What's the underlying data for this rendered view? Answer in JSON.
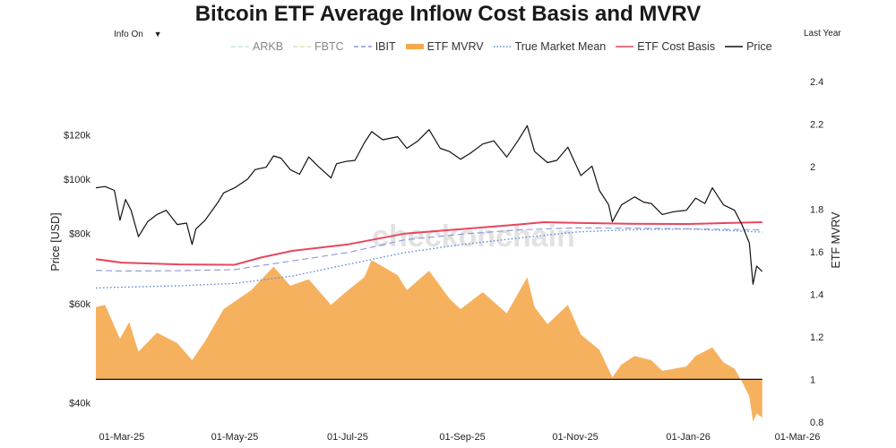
{
  "title": "Bitcoin ETF Average Inflow Cost Basis and MVRV",
  "controls": {
    "info_toggle": "Info On",
    "info_arrow": "▼",
    "range": "Last Year"
  },
  "watermark": "checkonchain",
  "legend": [
    {
      "key": "arkb",
      "label": "ARKB",
      "color": "#bfe3e3",
      "style": "dash",
      "muted": true
    },
    {
      "key": "fbtc",
      "label": "FBTC",
      "color": "#d2e8b5",
      "style": "dash",
      "muted": true
    },
    {
      "key": "ibit",
      "label": "IBIT",
      "color": "#8b95d8",
      "style": "dash",
      "muted": false
    },
    {
      "key": "etf_mvrv",
      "label": "ETF MVRV",
      "color": "#f5a94e",
      "style": "fill",
      "muted": false
    },
    {
      "key": "tmm",
      "label": "True Market Mean",
      "color": "#5a86e6",
      "style": "dot",
      "muted": false
    },
    {
      "key": "cost_basis",
      "label": "ETF Cost Basis",
      "color": "#e94560",
      "style": "solid",
      "muted": false
    },
    {
      "key": "price",
      "label": "Price",
      "color": "#111111",
      "style": "solid",
      "muted": false
    }
  ],
  "chart_data": {
    "type": "line",
    "x_range": [
      "2025-02-15",
      "2026-03-01"
    ],
    "x_ticks": [
      {
        "date": "2025-03-01",
        "label": "01-Mar-25"
      },
      {
        "date": "2025-05-01",
        "label": "01-May-25"
      },
      {
        "date": "2025-07-01",
        "label": "01-Jul-25"
      },
      {
        "date": "2025-09-01",
        "label": "01-Sep-25"
      },
      {
        "date": "2025-11-01",
        "label": "01-Nov-25"
      },
      {
        "date": "2026-01-01",
        "label": "01-Jan-26"
      },
      {
        "date": "2026-03-01",
        "label": "01-Mar-26"
      }
    ],
    "y_left": {
      "label": "Price [USD]",
      "scale": "log",
      "range": [
        36000,
        160000
      ],
      "ticks": [
        {
          "value": 40000,
          "label": "$40k"
        },
        {
          "value": 60000,
          "label": "$60k"
        },
        {
          "value": 80000,
          "label": "$80k"
        },
        {
          "value": 100000,
          "label": "$100k"
        },
        {
          "value": 120000,
          "label": "$120k"
        }
      ]
    },
    "y_right": {
      "label": "ETF MVRV",
      "range": [
        0.77,
        2.48
      ],
      "ticks": [
        {
          "value": 0.8,
          "label": "0.8"
        },
        {
          "value": 1,
          "label": "1"
        },
        {
          "value": 1.2,
          "label": "1.2"
        },
        {
          "value": 1.4,
          "label": "1.4"
        },
        {
          "value": 1.6,
          "label": "1.6"
        },
        {
          "value": 1.8,
          "label": "1.8"
        },
        {
          "value": 2,
          "label": "2"
        },
        {
          "value": 2.2,
          "label": "2.2"
        },
        {
          "value": 2.4,
          "label": "2.4"
        }
      ]
    },
    "baseline_mvrv": 1,
    "series": [
      {
        "name": "Price",
        "axis": "left",
        "color": "#111111",
        "points": [
          [
            "2025-02-15",
            96500
          ],
          [
            "2025-02-20",
            97000
          ],
          [
            "2025-02-25",
            95500
          ],
          [
            "2025-02-28",
            84500
          ],
          [
            "2025-03-03",
            92000
          ],
          [
            "2025-03-06",
            88000
          ],
          [
            "2025-03-10",
            79000
          ],
          [
            "2025-03-15",
            84000
          ],
          [
            "2025-03-20",
            86500
          ],
          [
            "2025-03-25",
            88000
          ],
          [
            "2025-03-31",
            83000
          ],
          [
            "2025-04-05",
            83500
          ],
          [
            "2025-04-08",
            76500
          ],
          [
            "2025-04-10",
            81500
          ],
          [
            "2025-04-15",
            84500
          ],
          [
            "2025-04-22",
            91000
          ],
          [
            "2025-04-25",
            94500
          ],
          [
            "2025-05-01",
            96500
          ],
          [
            "2025-05-08",
            100000
          ],
          [
            "2025-05-12",
            104000
          ],
          [
            "2025-05-18",
            105000
          ],
          [
            "2025-05-22",
            110000
          ],
          [
            "2025-05-26",
            109000
          ],
          [
            "2025-05-31",
            104000
          ],
          [
            "2025-06-05",
            102000
          ],
          [
            "2025-06-10",
            109500
          ],
          [
            "2025-06-15",
            105500
          ],
          [
            "2025-06-22",
            100500
          ],
          [
            "2025-06-25",
            106500
          ],
          [
            "2025-06-30",
            107500
          ],
          [
            "2025-07-05",
            108000
          ],
          [
            "2025-07-10",
            116000
          ],
          [
            "2025-07-14",
            121500
          ],
          [
            "2025-07-20",
            117500
          ],
          [
            "2025-07-28",
            119000
          ],
          [
            "2025-08-02",
            113500
          ],
          [
            "2025-08-08",
            117000
          ],
          [
            "2025-08-14",
            122500
          ],
          [
            "2025-08-20",
            113500
          ],
          [
            "2025-08-25",
            112000
          ],
          [
            "2025-08-31",
            108500
          ],
          [
            "2025-09-05",
            111000
          ],
          [
            "2025-09-12",
            115500
          ],
          [
            "2025-09-18",
            117000
          ],
          [
            "2025-09-25",
            109500
          ],
          [
            "2025-10-01",
            117000
          ],
          [
            "2025-10-06",
            124500
          ],
          [
            "2025-10-10",
            112000
          ],
          [
            "2025-10-17",
            107000
          ],
          [
            "2025-10-22",
            108000
          ],
          [
            "2025-10-28",
            114000
          ],
          [
            "2025-11-04",
            101500
          ],
          [
            "2025-11-10",
            105500
          ],
          [
            "2025-11-14",
            95500
          ],
          [
            "2025-11-19",
            90000
          ],
          [
            "2025-11-21",
            84000
          ],
          [
            "2025-11-26",
            90000
          ],
          [
            "2025-12-03",
            93000
          ],
          [
            "2025-12-08",
            91000
          ],
          [
            "2025-12-12",
            90500
          ],
          [
            "2025-12-18",
            86500
          ],
          [
            "2025-12-24",
            87500
          ],
          [
            "2025-12-31",
            88000
          ],
          [
            "2026-01-05",
            92500
          ],
          [
            "2026-01-10",
            90500
          ],
          [
            "2026-01-14",
            96500
          ],
          [
            "2026-01-20",
            90000
          ],
          [
            "2026-01-26",
            88000
          ],
          [
            "2026-01-30",
            83000
          ],
          [
            "2026-02-03",
            77000
          ],
          [
            "2026-02-05",
            65000
          ],
          [
            "2026-02-07",
            70000
          ],
          [
            "2026-02-10",
            68500
          ]
        ]
      },
      {
        "name": "ETF Cost Basis",
        "axis": "left",
        "color": "#e94560",
        "points": [
          [
            "2025-02-15",
            72000
          ],
          [
            "2025-03-01",
            71000
          ],
          [
            "2025-04-01",
            70500
          ],
          [
            "2025-05-01",
            70400
          ],
          [
            "2025-05-15",
            72500
          ],
          [
            "2025-06-01",
            74500
          ],
          [
            "2025-07-01",
            76500
          ],
          [
            "2025-08-01",
            80000
          ],
          [
            "2025-09-01",
            81500
          ],
          [
            "2025-10-01",
            83000
          ],
          [
            "2025-10-15",
            83800
          ],
          [
            "2025-11-01",
            83600
          ],
          [
            "2025-12-01",
            83300
          ],
          [
            "2026-01-01",
            83200
          ],
          [
            "2026-01-25",
            83600
          ],
          [
            "2026-02-10",
            83800
          ]
        ]
      },
      {
        "name": "True Market Mean",
        "axis": "left",
        "color": "#5a86e6",
        "points": [
          [
            "2025-02-15",
            64000
          ],
          [
            "2025-03-01",
            64200
          ],
          [
            "2025-04-01",
            64600
          ],
          [
            "2025-05-01",
            65200
          ],
          [
            "2025-06-01",
            67200
          ],
          [
            "2025-07-01",
            70500
          ],
          [
            "2025-08-01",
            74000
          ],
          [
            "2025-09-01",
            76500
          ],
          [
            "2025-10-01",
            78500
          ],
          [
            "2025-11-01",
            80500
          ],
          [
            "2025-12-01",
            81300
          ],
          [
            "2026-01-01",
            81500
          ],
          [
            "2026-02-10",
            80500
          ]
        ]
      },
      {
        "name": "IBIT",
        "axis": "left",
        "color": "#8b95d8",
        "points": [
          [
            "2025-02-15",
            68800
          ],
          [
            "2025-03-01",
            68600
          ],
          [
            "2025-04-01",
            68700
          ],
          [
            "2025-05-01",
            69000
          ],
          [
            "2025-06-01",
            71500
          ],
          [
            "2025-07-01",
            74000
          ],
          [
            "2025-08-01",
            78000
          ],
          [
            "2025-09-01",
            79800
          ],
          [
            "2025-10-01",
            81200
          ],
          [
            "2025-11-01",
            81900
          ],
          [
            "2025-12-01",
            81800
          ],
          [
            "2026-01-01",
            81600
          ],
          [
            "2026-02-10",
            81200
          ]
        ]
      },
      {
        "name": "ETF MVRV",
        "axis": "right",
        "color": "#f5a94e",
        "points": [
          [
            "2025-02-15",
            1.34
          ],
          [
            "2025-02-20",
            1.35
          ],
          [
            "2025-02-28",
            1.19
          ],
          [
            "2025-03-05",
            1.27
          ],
          [
            "2025-03-10",
            1.13
          ],
          [
            "2025-03-20",
            1.22
          ],
          [
            "2025-03-31",
            1.17
          ],
          [
            "2025-04-08",
            1.09
          ],
          [
            "2025-04-15",
            1.18
          ],
          [
            "2025-04-25",
            1.33
          ],
          [
            "2025-05-10",
            1.42
          ],
          [
            "2025-05-22",
            1.53
          ],
          [
            "2025-05-31",
            1.44
          ],
          [
            "2025-06-10",
            1.47
          ],
          [
            "2025-06-22",
            1.35
          ],
          [
            "2025-06-30",
            1.41
          ],
          [
            "2025-07-10",
            1.48
          ],
          [
            "2025-07-14",
            1.56
          ],
          [
            "2025-07-28",
            1.49
          ],
          [
            "2025-08-02",
            1.42
          ],
          [
            "2025-08-14",
            1.51
          ],
          [
            "2025-08-25",
            1.38
          ],
          [
            "2025-08-31",
            1.33
          ],
          [
            "2025-09-12",
            1.41
          ],
          [
            "2025-09-25",
            1.31
          ],
          [
            "2025-10-06",
            1.48
          ],
          [
            "2025-10-10",
            1.34
          ],
          [
            "2025-10-17",
            1.26
          ],
          [
            "2025-10-28",
            1.35
          ],
          [
            "2025-11-04",
            1.21
          ],
          [
            "2025-11-14",
            1.14
          ],
          [
            "2025-11-21",
            1.01
          ],
          [
            "2025-11-26",
            1.07
          ],
          [
            "2025-12-03",
            1.11
          ],
          [
            "2025-12-12",
            1.09
          ],
          [
            "2025-12-18",
            1.04
          ],
          [
            "2025-12-31",
            1.06
          ],
          [
            "2026-01-05",
            1.11
          ],
          [
            "2026-01-14",
            1.15
          ],
          [
            "2026-01-20",
            1.08
          ],
          [
            "2026-01-26",
            1.05
          ],
          [
            "2026-01-30",
            0.99
          ],
          [
            "2026-02-03",
            0.92
          ],
          [
            "2026-02-05",
            0.8
          ],
          [
            "2026-02-07",
            0.84
          ],
          [
            "2026-02-10",
            0.82
          ]
        ]
      }
    ]
  }
}
